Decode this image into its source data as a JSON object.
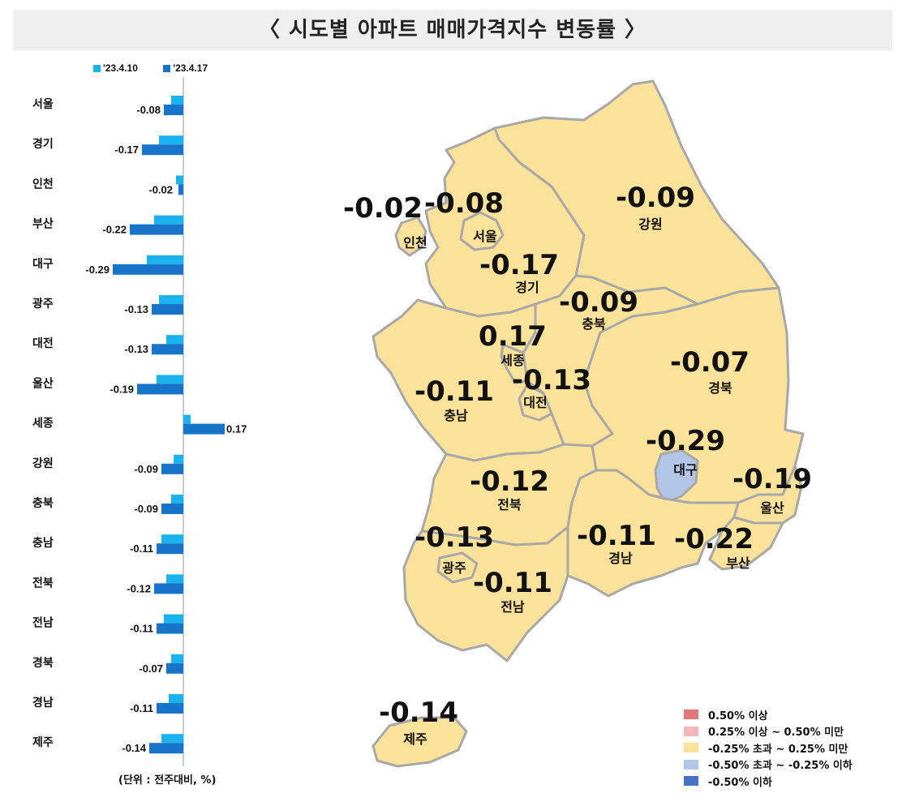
{
  "title": "〈 시도별 아파트 매매가격지수 변동률 〉",
  "legend": {
    "prev_label": "'23.4.10",
    "curr_label": "'23.4.17",
    "prev_color": "#1ab3ef",
    "curr_color": "#1874c8"
  },
  "unit_note": "(단위 : 전주대비, %)",
  "chart_data": {
    "type": "bar",
    "orientation": "horizontal",
    "categories": [
      "서울",
      "경기",
      "인천",
      "부산",
      "대구",
      "광주",
      "대전",
      "울산",
      "세종",
      "강원",
      "충북",
      "충남",
      "전북",
      "전남",
      "경북",
      "경남",
      "제주"
    ],
    "series": [
      {
        "name": "'23.4.10",
        "values": [
          -0.05,
          -0.1,
          -0.03,
          -0.12,
          -0.15,
          -0.1,
          -0.07,
          -0.11,
          0.03,
          -0.04,
          -0.05,
          -0.09,
          -0.07,
          -0.08,
          -0.05,
          -0.06,
          -0.09
        ]
      },
      {
        "name": "'23.4.17",
        "values": [
          -0.08,
          -0.17,
          -0.02,
          -0.22,
          -0.29,
          -0.13,
          -0.13,
          -0.19,
          0.17,
          -0.09,
          -0.09,
          -0.11,
          -0.12,
          -0.11,
          -0.07,
          -0.11,
          -0.14
        ]
      }
    ],
    "data_labels": [
      "-0.08",
      "-0.17",
      "-0.02",
      "-0.22",
      "-0.29",
      "-0.13",
      "-0.13",
      "-0.19",
      "0.17",
      "-0.09",
      "-0.09",
      "-0.11",
      "-0.12",
      "-0.11",
      "-0.07",
      "-0.11",
      "-0.14"
    ]
  },
  "map": {
    "regions": [
      {
        "name": "인천",
        "value": "-0.02",
        "fill": "#fbe29a"
      },
      {
        "name": "서울",
        "value": "-0.08",
        "fill": "#fbe29a"
      },
      {
        "name": "강원",
        "value": "-0.09",
        "fill": "#fbe29a"
      },
      {
        "name": "경기",
        "value": "-0.17",
        "fill": "#fbe29a"
      },
      {
        "name": "충북",
        "value": "-0.09",
        "fill": "#fbe29a"
      },
      {
        "name": "세종",
        "value": "0.17",
        "fill": "#fbe29a"
      },
      {
        "name": "경북",
        "value": "-0.07",
        "fill": "#fbe29a"
      },
      {
        "name": "충남",
        "value": "-0.11",
        "fill": "#fbe29a"
      },
      {
        "name": "대전",
        "value": "-0.13",
        "fill": "#fbe29a"
      },
      {
        "name": "대구",
        "value": "-0.29",
        "fill": "#b4c6e7"
      },
      {
        "name": "전북",
        "value": "-0.12",
        "fill": "#fbe29a"
      },
      {
        "name": "울산",
        "value": "-0.19",
        "fill": "#fbe29a"
      },
      {
        "name": "광주",
        "value": "-0.13",
        "fill": "#fbe29a"
      },
      {
        "name": "경남",
        "value": "-0.11",
        "fill": "#fbe29a"
      },
      {
        "name": "부산",
        "value": "-0.22",
        "fill": "#fbe29a"
      },
      {
        "name": "전남",
        "value": "-0.11",
        "fill": "#fbe29a"
      },
      {
        "name": "제주",
        "value": "-0.14",
        "fill": "#fbe29a"
      }
    ],
    "legend": [
      {
        "label": "0.50% 이상",
        "color": "#e2777a"
      },
      {
        "label": "0.25% 이상 ~ 0.50% 미만",
        "color": "#f4b6b6"
      },
      {
        "label": "-0.25% 초과 ~ 0.25% 미만",
        "color": "#fbe29a"
      },
      {
        "label": "-0.50% 초과 ~ -0.25% 이하",
        "color": "#b4c6e7"
      },
      {
        "label": "-0.50% 이하",
        "color": "#4472c4"
      }
    ]
  }
}
